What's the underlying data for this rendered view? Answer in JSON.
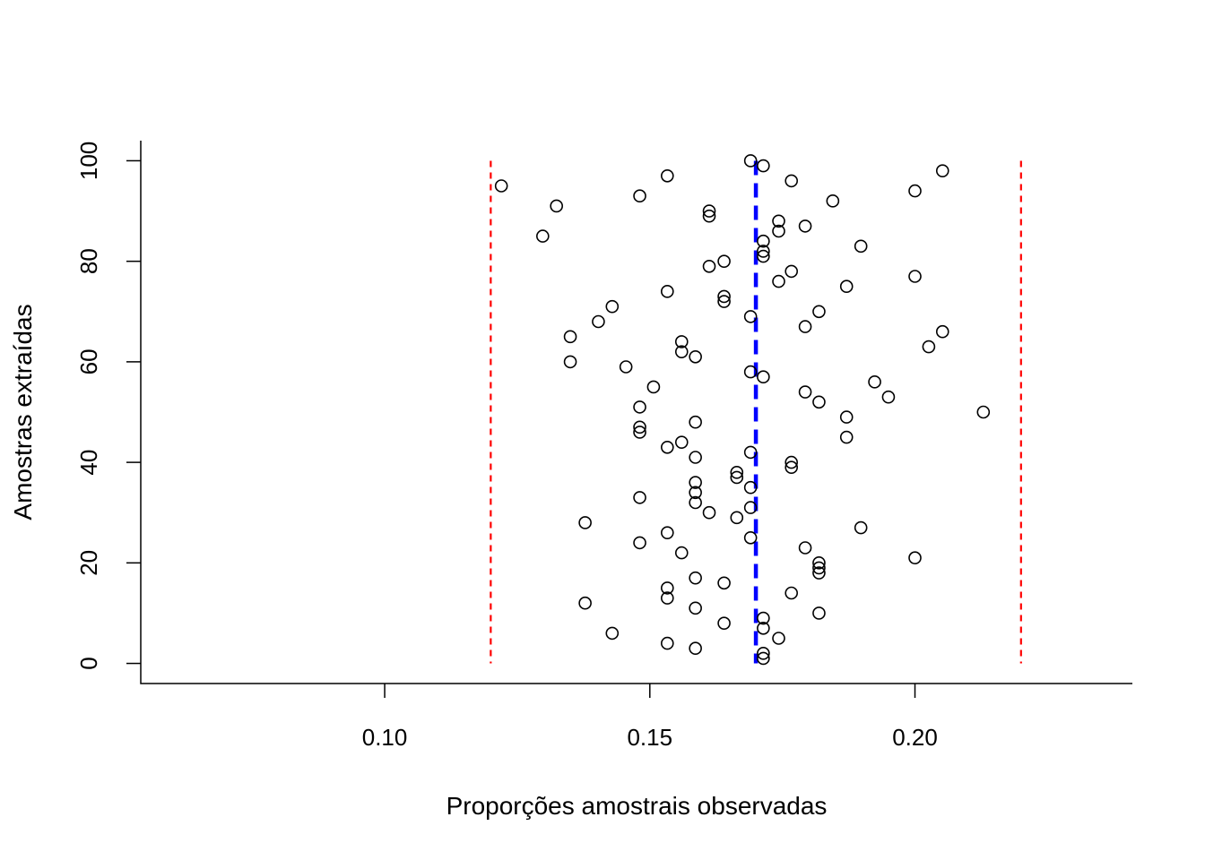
{
  "chart_data": {
    "type": "scatter",
    "title": "",
    "xlabel": "Proporções amostrais observadas",
    "ylabel": "Amostras extraídas",
    "xlim": [
      0.054,
      0.241
    ],
    "ylim": [
      -4,
      104
    ],
    "xticks": [
      0.1,
      0.15,
      0.2
    ],
    "xtick_labels": [
      "0.10",
      "0.15",
      "0.20"
    ],
    "yticks": [
      0,
      20,
      40,
      60,
      80,
      100
    ],
    "ytick_labels": [
      "0",
      "20",
      "40",
      "60",
      "80",
      "100"
    ],
    "grid": false,
    "reference_lines": [
      {
        "x": 0.12,
        "color": "#ff0000",
        "style": "dashed"
      },
      {
        "x": 0.17,
        "color": "#0000ff",
        "style": "dashed"
      },
      {
        "x": 0.22,
        "color": "#ff0000",
        "style": "dashed"
      }
    ],
    "series": [
      {
        "points": [
          [
            0.1714,
            1
          ],
          [
            0.1714,
            2
          ],
          [
            0.1586,
            3
          ],
          [
            0.1533,
            4
          ],
          [
            0.1743,
            5
          ],
          [
            0.1429,
            6
          ],
          [
            0.1714,
            7
          ],
          [
            0.164,
            8
          ],
          [
            0.1714,
            9
          ],
          [
            0.1819,
            10
          ],
          [
            0.1586,
            11
          ],
          [
            0.1378,
            12
          ],
          [
            0.1533,
            13
          ],
          [
            0.1767,
            14
          ],
          [
            0.1533,
            15
          ],
          [
            0.164,
            16
          ],
          [
            0.1586,
            17
          ],
          [
            0.1819,
            18
          ],
          [
            0.1819,
            19
          ],
          [
            0.1819,
            20
          ],
          [
            0.2,
            21
          ],
          [
            0.156,
            22
          ],
          [
            0.1793,
            23
          ],
          [
            0.1481,
            24
          ],
          [
            0.169,
            25
          ],
          [
            0.1533,
            26
          ],
          [
            0.1898,
            27
          ],
          [
            0.1378,
            28
          ],
          [
            0.1664,
            29
          ],
          [
            0.1612,
            30
          ],
          [
            0.169,
            31
          ],
          [
            0.1586,
            32
          ],
          [
            0.1481,
            33
          ],
          [
            0.1586,
            34
          ],
          [
            0.169,
            35
          ],
          [
            0.1586,
            36
          ],
          [
            0.1664,
            37
          ],
          [
            0.1664,
            38
          ],
          [
            0.1767,
            39
          ],
          [
            0.1767,
            40
          ],
          [
            0.1586,
            41
          ],
          [
            0.169,
            42
          ],
          [
            0.1533,
            43
          ],
          [
            0.156,
            44
          ],
          [
            0.1871,
            45
          ],
          [
            0.1481,
            46
          ],
          [
            0.1481,
            47
          ],
          [
            0.1586,
            48
          ],
          [
            0.1871,
            49
          ],
          [
            0.2129,
            50
          ],
          [
            0.1481,
            51
          ],
          [
            0.1819,
            52
          ],
          [
            0.195,
            53
          ],
          [
            0.1793,
            54
          ],
          [
            0.1507,
            55
          ],
          [
            0.1924,
            56
          ],
          [
            0.1714,
            57
          ],
          [
            0.169,
            58
          ],
          [
            0.1455,
            59
          ],
          [
            0.135,
            60
          ],
          [
            0.1586,
            61
          ],
          [
            0.156,
            62
          ],
          [
            0.2026,
            63
          ],
          [
            0.156,
            64
          ],
          [
            0.135,
            65
          ],
          [
            0.2052,
            66
          ],
          [
            0.1793,
            67
          ],
          [
            0.1403,
            68
          ],
          [
            0.169,
            69
          ],
          [
            0.1819,
            70
          ],
          [
            0.1429,
            71
          ],
          [
            0.164,
            72
          ],
          [
            0.164,
            73
          ],
          [
            0.1533,
            74
          ],
          [
            0.1871,
            75
          ],
          [
            0.1743,
            76
          ],
          [
            0.2,
            77
          ],
          [
            0.1767,
            78
          ],
          [
            0.1612,
            79
          ],
          [
            0.164,
            80
          ],
          [
            0.1714,
            81
          ],
          [
            0.1714,
            82
          ],
          [
            0.1898,
            83
          ],
          [
            0.1714,
            84
          ],
          [
            0.1298,
            85
          ],
          [
            0.1743,
            86
          ],
          [
            0.1793,
            87
          ],
          [
            0.1743,
            88
          ],
          [
            0.1612,
            89
          ],
          [
            0.1612,
            90
          ],
          [
            0.1324,
            91
          ],
          [
            0.1845,
            92
          ],
          [
            0.1481,
            93
          ],
          [
            0.2,
            94
          ],
          [
            0.122,
            95
          ],
          [
            0.1767,
            96
          ],
          [
            0.1533,
            97
          ],
          [
            0.2052,
            98
          ],
          [
            0.1714,
            99
          ],
          [
            0.169,
            100
          ]
        ]
      }
    ]
  }
}
